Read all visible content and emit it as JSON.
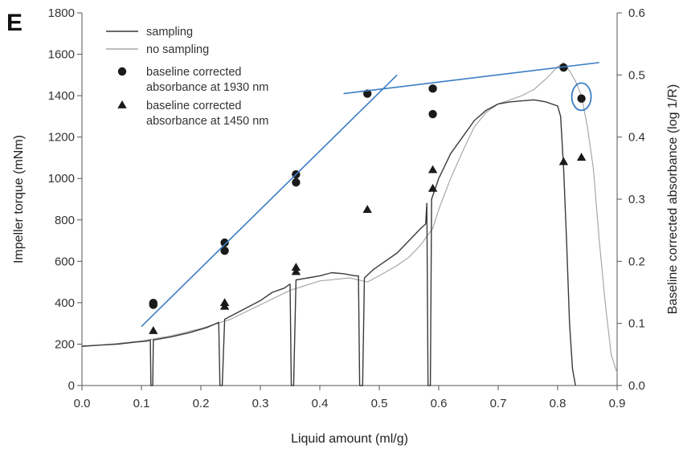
{
  "chart_data": {
    "type": "line",
    "panel_label": "E",
    "xlabel": "Liquid amount (ml/g)",
    "ylabel": "Impeller torque (mNm)",
    "y2label": "Baseline corrected absorbance (log 1/R)",
    "xlim": [
      0.0,
      0.9
    ],
    "ylim": [
      0,
      1800
    ],
    "y2lim": [
      0.0,
      0.6
    ],
    "x_ticks": [
      "0.0",
      "0.1",
      "0.2",
      "0.3",
      "0.4",
      "0.5",
      "0.6",
      "0.7",
      "0.8",
      "0.9"
    ],
    "y_ticks": [
      "0",
      "200",
      "400",
      "600",
      "800",
      "1000",
      "1200",
      "1400",
      "1600",
      "1800"
    ],
    "y2_ticks": [
      "0.0",
      "0.1",
      "0.2",
      "0.3",
      "0.4",
      "0.5",
      "0.6"
    ],
    "grid": false,
    "legend_position": "top-left",
    "legend": [
      {
        "label": "sampling",
        "marker": "line",
        "color": "#3a3a3a"
      },
      {
        "label": "no sampling",
        "marker": "line",
        "color": "#a8a8a8"
      },
      {
        "label": "baseline corrected\nabsorbance at 1930 nm",
        "marker": "circle",
        "color": "#1a1a1a"
      },
      {
        "label": "baseline corrected\nabsorbance at 1450 nm",
        "marker": "triangle",
        "color": "#1a1a1a"
      }
    ],
    "series": [
      {
        "name": "sampling",
        "axis": "left",
        "color": "#3a3a3a",
        "points": [
          [
            0.0,
            190
          ],
          [
            0.03,
            195
          ],
          [
            0.06,
            200
          ],
          [
            0.09,
            210
          ],
          [
            0.11,
            215
          ],
          [
            0.115,
            220
          ],
          [
            0.116,
            0
          ],
          [
            0.119,
            0
          ],
          [
            0.12,
            220
          ],
          [
            0.15,
            235
          ],
          [
            0.18,
            255
          ],
          [
            0.21,
            280
          ],
          [
            0.23,
            305
          ],
          [
            0.232,
            0
          ],
          [
            0.236,
            0
          ],
          [
            0.24,
            320
          ],
          [
            0.26,
            350
          ],
          [
            0.28,
            380
          ],
          [
            0.3,
            410
          ],
          [
            0.32,
            450
          ],
          [
            0.34,
            470
          ],
          [
            0.35,
            490
          ],
          [
            0.352,
            0
          ],
          [
            0.356,
            0
          ],
          [
            0.36,
            510
          ],
          [
            0.38,
            520
          ],
          [
            0.4,
            530
          ],
          [
            0.42,
            545
          ],
          [
            0.44,
            540
          ],
          [
            0.46,
            530
          ],
          [
            0.465,
            530
          ],
          [
            0.467,
            0
          ],
          [
            0.472,
            0
          ],
          [
            0.475,
            520
          ],
          [
            0.49,
            560
          ],
          [
            0.51,
            600
          ],
          [
            0.53,
            640
          ],
          [
            0.55,
            700
          ],
          [
            0.57,
            760
          ],
          [
            0.578,
            780
          ],
          [
            0.58,
            880
          ],
          [
            0.582,
            0
          ],
          [
            0.586,
            0
          ],
          [
            0.588,
            900
          ],
          [
            0.6,
            1000
          ],
          [
            0.62,
            1120
          ],
          [
            0.64,
            1200
          ],
          [
            0.66,
            1280
          ],
          [
            0.68,
            1330
          ],
          [
            0.7,
            1360
          ],
          [
            0.72,
            1370
          ],
          [
            0.74,
            1375
          ],
          [
            0.76,
            1380
          ],
          [
            0.78,
            1370
          ],
          [
            0.8,
            1350
          ],
          [
            0.805,
            1300
          ],
          [
            0.81,
            1050
          ],
          [
            0.815,
            700
          ],
          [
            0.82,
            300
          ],
          [
            0.825,
            80
          ],
          [
            0.83,
            0
          ]
        ]
      },
      {
        "name": "no sampling",
        "axis": "left",
        "color": "#a8a8a8",
        "points": [
          [
            0.0,
            188
          ],
          [
            0.05,
            200
          ],
          [
            0.1,
            215
          ],
          [
            0.15,
            240
          ],
          [
            0.2,
            275
          ],
          [
            0.25,
            320
          ],
          [
            0.3,
            390
          ],
          [
            0.35,
            460
          ],
          [
            0.4,
            505
          ],
          [
            0.45,
            520
          ],
          [
            0.48,
            500
          ],
          [
            0.5,
            530
          ],
          [
            0.53,
            580
          ],
          [
            0.55,
            620
          ],
          [
            0.57,
            680
          ],
          [
            0.59,
            760
          ],
          [
            0.6,
            850
          ],
          [
            0.62,
            1000
          ],
          [
            0.64,
            1130
          ],
          [
            0.66,
            1250
          ],
          [
            0.68,
            1320
          ],
          [
            0.7,
            1360
          ],
          [
            0.72,
            1380
          ],
          [
            0.74,
            1400
          ],
          [
            0.76,
            1430
          ],
          [
            0.78,
            1480
          ],
          [
            0.8,
            1540
          ],
          [
            0.81,
            1560
          ],
          [
            0.82,
            1520
          ],
          [
            0.83,
            1470
          ],
          [
            0.84,
            1400
          ],
          [
            0.85,
            1250
          ],
          [
            0.86,
            1050
          ],
          [
            0.87,
            700
          ],
          [
            0.88,
            400
          ],
          [
            0.89,
            150
          ],
          [
            0.9,
            60
          ]
        ]
      },
      {
        "name": "baseline corrected absorbance at 1930 nm",
        "axis": "right",
        "marker": "circle",
        "color": "#1a1a1a",
        "points": [
          [
            0.12,
            0.133
          ],
          [
            0.12,
            0.13
          ],
          [
            0.24,
            0.23
          ],
          [
            0.24,
            0.217
          ],
          [
            0.36,
            0.34
          ],
          [
            0.36,
            0.327
          ],
          [
            0.48,
            0.47
          ],
          [
            0.59,
            0.478
          ],
          [
            0.59,
            0.437
          ],
          [
            0.81,
            0.512
          ],
          [
            0.84,
            0.462
          ]
        ]
      },
      {
        "name": "baseline corrected absorbance at 1450 nm",
        "axis": "right",
        "marker": "triangle",
        "color": "#1a1a1a",
        "points": [
          [
            0.12,
            0.088
          ],
          [
            0.24,
            0.133
          ],
          [
            0.24,
            0.127
          ],
          [
            0.36,
            0.19
          ],
          [
            0.36,
            0.183
          ],
          [
            0.48,
            0.283
          ],
          [
            0.59,
            0.347
          ],
          [
            0.59,
            0.317
          ],
          [
            0.81,
            0.36
          ],
          [
            0.84,
            0.367
          ]
        ]
      }
    ],
    "annotations": [
      {
        "type": "trend-line",
        "color": "#3b7dc4",
        "x": [
          0.1,
          0.53
        ],
        "y2": [
          0.095,
          0.5
        ]
      },
      {
        "type": "trend-line",
        "color": "#3b7dc4",
        "x": [
          0.44,
          0.87
        ],
        "y2": [
          0.47,
          0.52
        ]
      },
      {
        "type": "highlight-ellipse",
        "color": "#3b7dc4",
        "x": 0.84,
        "y2": 0.465
      }
    ]
  }
}
